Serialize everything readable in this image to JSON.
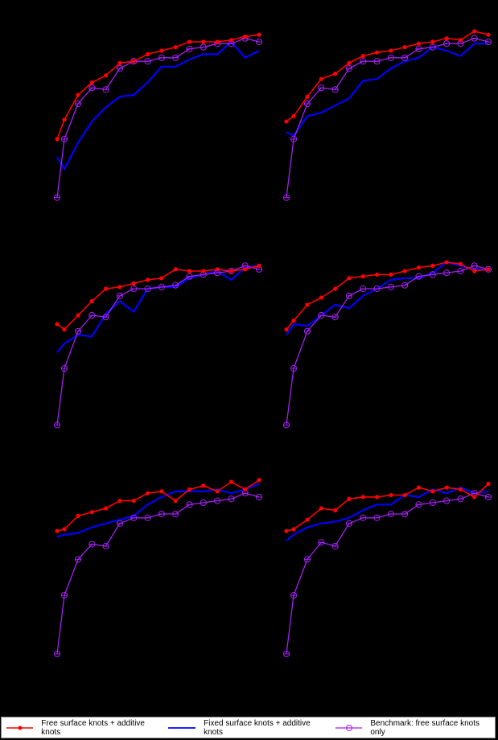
{
  "chart_data": {
    "type": "line",
    "layout": "3x2 grid of panels, axes not rendered (black on black)",
    "x": [
      1,
      2,
      3,
      4,
      5,
      6,
      7,
      8,
      9,
      10,
      11,
      12,
      13,
      14,
      15,
      16
    ],
    "y_scale_note": "values estimated as relative height within each panel's plot area (0-100)",
    "legend": {
      "position": "bottom",
      "entries": [
        {
          "label": "Free surface knots + additive knots",
          "color": "#ff0000",
          "marker": "filled-circle"
        },
        {
          "label": "Fixed surface knots + additive knots",
          "color": "#0000ff",
          "marker": "none"
        },
        {
          "label": "Benchmark: free surface knots only",
          "color": "#a020f0",
          "marker": "open-circle-cross"
        }
      ]
    },
    "panels": [
      {
        "row": 0,
        "col": 0,
        "series": [
          {
            "name": "Free surface knots + additive knots",
            "values": [
              35,
              46,
              60,
              67,
              71,
              78,
              79,
              83,
              85,
              87,
              90,
              90,
              90,
              91,
              93,
              94
            ]
          },
          {
            "name": "Fixed surface knots + additive knots",
            "values": [
              25,
              18,
              33,
              45,
              53,
              59,
              60,
              67,
              76,
              76,
              80,
              83,
              83,
              90,
              81,
              85
            ]
          },
          {
            "name": "Benchmark: free surface knots only",
            "values": [
              2,
              35,
              55,
              64,
              63,
              75,
              79,
              79,
              81,
              81,
              86,
              87,
              89,
              89,
              92,
              90
            ]
          }
        ]
      },
      {
        "row": 0,
        "col": 1,
        "series": [
          {
            "name": "Free surface knots + additive knots",
            "values": [
              45,
              48,
              59,
              69,
              72,
              78,
              82,
              84,
              85,
              87,
              89,
              90,
              92,
              91,
              96,
              94
            ]
          },
          {
            "name": "Fixed surface knots + additive knots",
            "values": [
              39,
              37,
              48,
              50,
              54,
              58,
              68,
              69,
              75,
              79,
              81,
              87,
              85,
              82,
              89,
              89
            ]
          },
          {
            "name": "Benchmark: free surface knots only",
            "values": [
              2,
              35,
              55,
              64,
              63,
              75,
              79,
              79,
              81,
              81,
              86,
              87,
              89,
              89,
              92,
              90
            ]
          }
        ]
      },
      {
        "row": 1,
        "col": 0,
        "series": [
          {
            "name": "Free surface knots + additive knots",
            "values": [
              60,
              57,
              65,
              73,
              80,
              81,
              83,
              85,
              86,
              91,
              90,
              90,
              91,
              90,
              91,
              93
            ]
          },
          {
            "name": "Fixed surface knots + additive knots",
            "values": [
              44,
              49,
              54,
              53,
              66,
              73,
              67,
              80,
              81,
              81,
              86,
              88,
              90,
              85,
              92,
              93
            ]
          },
          {
            "name": "Benchmark: free surface knots only",
            "values": [
              3,
              35,
              56,
              65,
              64,
              76,
              80,
              80,
              81,
              82,
              87,
              88,
              89,
              90,
              93,
              91
            ]
          }
        ]
      },
      {
        "row": 1,
        "col": 1,
        "series": [
          {
            "name": "Free surface knots + additive knots",
            "values": [
              57,
              62,
              71,
              75,
              80,
              86,
              87,
              88,
              88,
              90,
              92,
              93,
              95,
              94,
              90,
              91
            ]
          },
          {
            "name": "Fixed surface knots + additive knots",
            "values": [
              54,
              60,
              59,
              65,
              71,
              69,
              76,
              80,
              85,
              86,
              86,
              89,
              95,
              93,
              91,
              91
            ]
          },
          {
            "name": "Benchmark: free surface knots only",
            "values": [
              3,
              35,
              56,
              65,
              64,
              76,
              80,
              80,
              81,
              82,
              87,
              88,
              89,
              90,
              93,
              91
            ]
          }
        ]
      },
      {
        "row": 2,
        "col": 0,
        "series": [
          {
            "name": "Free surface knots + additive knots",
            "values": [
              68,
              69,
              76,
              78,
              80,
              84,
              84,
              88,
              89,
              84,
              90,
              92,
              89,
              94,
              90,
              95
            ]
          },
          {
            "name": "Fixed surface knots + additive knots",
            "values": [
              65,
              66,
              67,
              70,
              72,
              74,
              76,
              82,
              86,
              89,
              89,
              89,
              90,
              88,
              90,
              93
            ]
          },
          {
            "name": "Benchmark: free surface knots only",
            "values": [
              3,
              34,
              53,
              61,
              60,
              72,
              75,
              75,
              77,
              77,
              82,
              83,
              84,
              85,
              88,
              86
            ]
          }
        ]
      },
      {
        "row": 2,
        "col": 1,
        "series": [
          {
            "name": "Free surface knots + additive knots",
            "values": [
              68,
              69,
              74,
              80,
              79,
              85,
              86,
              86,
              87,
              87,
              91,
              89,
              91,
              90,
              86,
              93
            ]
          },
          {
            "name": "Fixed surface knots + additive knots",
            "values": [
              63,
              66,
              70,
              72,
              73,
              75,
              79,
              82,
              82,
              87,
              86,
              90,
              88,
              91,
              88,
              89
            ]
          },
          {
            "name": "Benchmark: free surface knots only",
            "values": [
              3,
              34,
              53,
              62,
              60,
              72,
              75,
              75,
              77,
              77,
              82,
              83,
              84,
              85,
              88,
              86
            ]
          }
        ]
      }
    ]
  },
  "legend": {
    "items": [
      {
        "label": "Free surface knots + additive knots",
        "color": "#ff0000"
      },
      {
        "label": "Fixed surface knots + additive knots",
        "color": "#0000ff"
      },
      {
        "label": "Benchmark: free surface knots only",
        "color": "#a020f0"
      }
    ]
  },
  "colors": {
    "background": "#000000",
    "free": "#ff0000",
    "fixed": "#0000ff",
    "benchmark": "#a020f0",
    "legend_bg": "#ffffff"
  }
}
